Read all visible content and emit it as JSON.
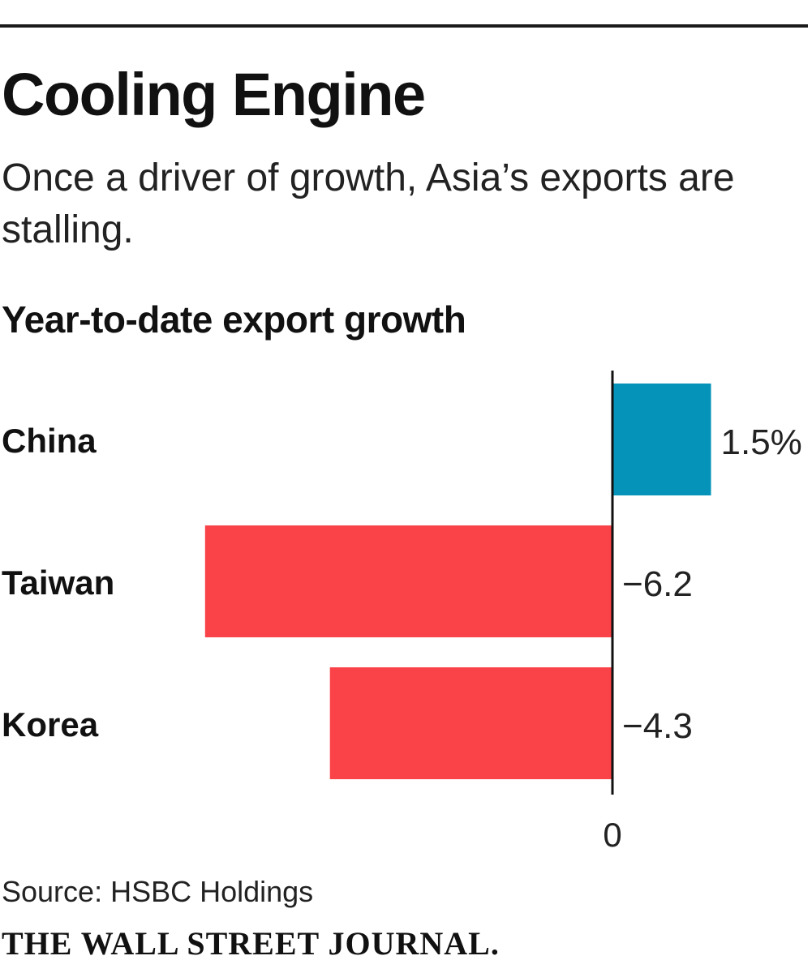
{
  "header": {
    "title": "Cooling Engine",
    "subtitle": "Once a driver of growth, Asia’s exports are stalling."
  },
  "chart_data": {
    "type": "bar",
    "orientation": "horizontal",
    "title": "Year-to-date export growth",
    "categories": [
      "China",
      "Taiwan",
      "Korea"
    ],
    "values": [
      1.5,
      -6.2,
      -4.3
    ],
    "value_labels": [
      "1.5%",
      "−6.2",
      "−4.3"
    ],
    "unit": "%",
    "zero_label": "0",
    "xlim": [
      -9.3,
      3.0
    ],
    "grid": false,
    "legend": "none",
    "colors": {
      "positive": "#0693b9",
      "negative": "#f94348",
      "axis": "#111111"
    }
  },
  "footer": {
    "source": "Source: HSBC Holdings",
    "credit": "THE WALL STREET JOURNAL."
  }
}
